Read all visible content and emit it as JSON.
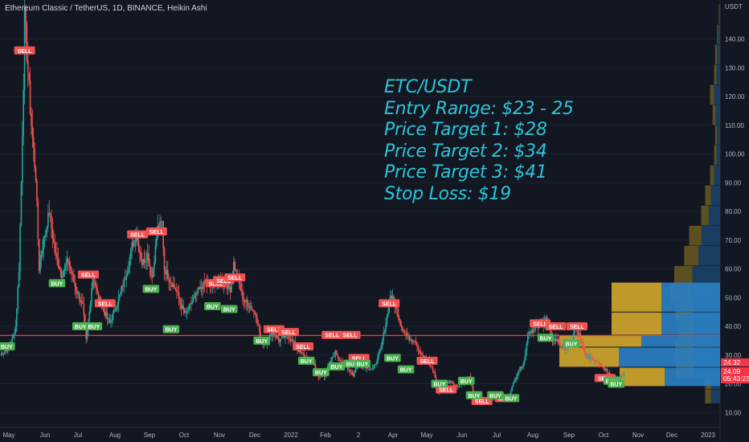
{
  "header": {
    "symbol": "Ethereum Classic / TetherUS, 1D, BINANCE, Heikin Ashi"
  },
  "annotation": {
    "lines": [
      "ETC/USDT",
      "Entry Range: $23 - 25",
      "Price Target 1: $28",
      "Price Target 2: $34",
      "Price Target 3: $41",
      "Stop Loss: $19"
    ]
  },
  "price_axis": {
    "currency": "USDT",
    "ticks": [
      "140.00",
      "130.00",
      "120.00",
      "110.00",
      "100.00",
      "90.00",
      "80.00",
      "70.00",
      "60.00",
      "50.00",
      "40.00",
      "30.00",
      "20.00",
      "10.00"
    ],
    "tags": {
      "upper": "24.32",
      "current": "24.09",
      "countdown": "05:43:23"
    }
  },
  "time_axis": {
    "labels": [
      "May",
      "Jun",
      "Jul",
      "Aug",
      "Sep",
      "Oct",
      "Nov",
      "Dec",
      "2022",
      "Feb",
      "2",
      "Apr",
      "May",
      "Jun",
      "Jul",
      "Aug",
      "Sep",
      "Oct",
      "Nov",
      "Dec",
      "2023"
    ]
  },
  "colors": {
    "background": "#131722",
    "up": "#26a69a",
    "down": "#ef5350",
    "horizontal_line": "#f23645",
    "annotation": "#2cc4d8",
    "vp_up": "#d4a72c",
    "vp_down": "#2a7fc2",
    "signal_buy": "#4caf50",
    "signal_sell": "#f05252"
  },
  "signals": {
    "sell_label": "SELL",
    "buy_label": "BUY",
    "sell_points": [
      [
        "2021-05-06",
        136
      ],
      [
        "2021-08-15",
        72
      ],
      [
        "2021-09-01",
        73
      ],
      [
        "2021-07-02",
        58
      ],
      [
        "2021-07-17",
        48
      ],
      [
        "2021-10-24",
        55
      ],
      [
        "2021-10-31",
        56
      ],
      [
        "2021-11-10",
        57
      ],
      [
        "2021-12-15",
        39
      ],
      [
        "2021-12-28",
        38
      ],
      [
        "2022-01-10",
        33
      ],
      [
        "2022-02-05",
        37
      ],
      [
        "2022-02-21",
        37
      ],
      [
        "2022-03-01",
        29
      ],
      [
        "2022-03-28",
        48
      ],
      [
        "2022-05-01",
        28
      ],
      [
        "2022-05-18",
        18
      ],
      [
        "2022-06-19",
        14
      ],
      [
        "2022-07-10",
        15
      ],
      [
        "2022-08-10",
        41
      ],
      [
        "2022-08-24",
        40
      ],
      [
        "2022-09-12",
        40
      ],
      [
        "2022-10-07",
        22
      ]
    ],
    "buy_points": [
      [
        "2021-04-20",
        33
      ],
      [
        "2021-06-04",
        55
      ],
      [
        "2021-06-25",
        40
      ],
      [
        "2021-07-07",
        40
      ],
      [
        "2021-08-27",
        53
      ],
      [
        "2021-09-14",
        39
      ],
      [
        "2021-10-21",
        47
      ],
      [
        "2021-11-05",
        46
      ],
      [
        "2021-12-04",
        35
      ],
      [
        "2022-01-13",
        28
      ],
      [
        "2022-01-26",
        24
      ],
      [
        "2022-02-09",
        26
      ],
      [
        "2022-02-23",
        27
      ],
      [
        "2022-03-04",
        27
      ],
      [
        "2022-03-31",
        29
      ],
      [
        "2022-04-12",
        25
      ],
      [
        "2022-05-12",
        20
      ],
      [
        "2022-06-05",
        21
      ],
      [
        "2022-06-12",
        16
      ],
      [
        "2022-07-01",
        16
      ],
      [
        "2022-07-15",
        15
      ],
      [
        "2022-08-15",
        36
      ],
      [
        "2022-09-07",
        34
      ],
      [
        "2022-10-13",
        21
      ],
      [
        "2022-10-17",
        20
      ]
    ]
  },
  "chart_data": {
    "type": "candlestick",
    "title": "Ethereum Classic / TetherUS, 1D, BINANCE, Heikin Ashi",
    "x_range": [
      "2021-04-14",
      "2023-01-10"
    ],
    "y_range": [
      4,
      153
    ],
    "horizontal_line": 36.8,
    "close_series": [
      [
        "2021-04-14",
        30
      ],
      [
        "2021-04-20",
        32
      ],
      [
        "2021-04-24",
        34
      ],
      [
        "2021-04-28",
        40
      ],
      [
        "2021-05-01",
        60
      ],
      [
        "2021-05-03",
        90
      ],
      [
        "2021-05-05",
        125
      ],
      [
        "2021-05-06",
        148
      ],
      [
        "2021-05-08",
        135
      ],
      [
        "2021-05-12",
        110
      ],
      [
        "2021-05-16",
        92
      ],
      [
        "2021-05-19",
        60
      ],
      [
        "2021-05-22",
        68
      ],
      [
        "2021-05-28",
        80
      ],
      [
        "2021-06-02",
        66
      ],
      [
        "2021-06-08",
        58
      ],
      [
        "2021-06-14",
        63
      ],
      [
        "2021-06-20",
        54
      ],
      [
        "2021-06-27",
        47
      ],
      [
        "2021-06-30",
        35
      ],
      [
        "2021-07-03",
        45
      ],
      [
        "2021-07-06",
        58
      ],
      [
        "2021-07-10",
        51
      ],
      [
        "2021-07-14",
        47
      ],
      [
        "2021-07-21",
        41
      ],
      [
        "2021-07-25",
        45
      ],
      [
        "2021-08-01",
        53
      ],
      [
        "2021-08-06",
        60
      ],
      [
        "2021-08-10",
        68
      ],
      [
        "2021-08-14",
        72
      ],
      [
        "2021-08-19",
        62
      ],
      [
        "2021-08-24",
        65
      ],
      [
        "2021-08-28",
        57
      ],
      [
        "2021-09-02",
        74
      ],
      [
        "2021-09-06",
        76
      ],
      [
        "2021-09-08",
        60
      ],
      [
        "2021-09-12",
        57
      ],
      [
        "2021-09-18",
        53
      ],
      [
        "2021-09-23",
        47
      ],
      [
        "2021-09-27",
        44
      ],
      [
        "2021-10-02",
        48
      ],
      [
        "2021-10-08",
        52
      ],
      [
        "2021-10-14",
        55
      ],
      [
        "2021-10-20",
        54
      ],
      [
        "2021-10-25",
        56
      ],
      [
        "2021-11-01",
        55
      ],
      [
        "2021-11-06",
        53
      ],
      [
        "2021-11-09",
        62
      ],
      [
        "2021-11-12",
        57
      ],
      [
        "2021-11-18",
        49
      ],
      [
        "2021-11-24",
        47
      ],
      [
        "2021-11-29",
        44
      ],
      [
        "2021-12-04",
        34
      ],
      [
        "2021-12-09",
        35
      ],
      [
        "2021-12-14",
        38
      ],
      [
        "2021-12-20",
        35
      ],
      [
        "2021-12-27",
        37
      ],
      [
        "2022-01-02",
        34
      ],
      [
        "2022-01-07",
        31
      ],
      [
        "2022-01-13",
        29
      ],
      [
        "2022-01-20",
        27
      ],
      [
        "2022-01-24",
        22
      ],
      [
        "2022-01-29",
        23
      ],
      [
        "2022-02-04",
        28
      ],
      [
        "2022-02-08",
        31
      ],
      [
        "2022-02-13",
        28
      ],
      [
        "2022-02-20",
        25
      ],
      [
        "2022-02-24",
        23
      ],
      [
        "2022-03-01",
        28
      ],
      [
        "2022-03-07",
        26
      ],
      [
        "2022-03-14",
        25
      ],
      [
        "2022-03-21",
        33
      ],
      [
        "2022-03-26",
        43
      ],
      [
        "2022-03-29",
        51
      ],
      [
        "2022-04-03",
        47
      ],
      [
        "2022-04-08",
        40
      ],
      [
        "2022-04-14",
        36
      ],
      [
        "2022-04-20",
        35
      ],
      [
        "2022-04-26",
        30
      ],
      [
        "2022-05-02",
        28
      ],
      [
        "2022-05-07",
        24
      ],
      [
        "2022-05-11",
        17
      ],
      [
        "2022-05-16",
        20
      ],
      [
        "2022-05-22",
        21
      ],
      [
        "2022-05-28",
        19
      ],
      [
        "2022-06-03",
        21
      ],
      [
        "2022-06-08",
        22
      ],
      [
        "2022-06-13",
        14
      ],
      [
        "2022-06-19",
        13
      ],
      [
        "2022-06-25",
        15
      ],
      [
        "2022-07-01",
        15
      ],
      [
        "2022-07-06",
        16
      ],
      [
        "2022-07-12",
        15
      ],
      [
        "2022-07-16",
        19
      ],
      [
        "2022-07-21",
        24
      ],
      [
        "2022-07-27",
        28
      ],
      [
        "2022-07-30",
        38
      ],
      [
        "2022-08-04",
        39
      ],
      [
        "2022-08-10",
        40
      ],
      [
        "2022-08-15",
        43
      ],
      [
        "2022-08-20",
        36
      ],
      [
        "2022-08-25",
        35
      ],
      [
        "2022-08-30",
        33
      ],
      [
        "2022-09-03",
        32
      ],
      [
        "2022-09-07",
        34
      ],
      [
        "2022-09-10",
        39
      ],
      [
        "2022-09-14",
        37
      ],
      [
        "2022-09-19",
        30
      ],
      [
        "2022-09-24",
        29
      ],
      [
        "2022-09-30",
        28
      ],
      [
        "2022-10-05",
        26
      ],
      [
        "2022-10-10",
        24
      ],
      [
        "2022-10-15",
        22
      ],
      [
        "2022-10-20",
        22
      ],
      [
        "2022-10-25",
        24.1
      ]
    ],
    "volume_profile_main": [
      {
        "low": 44.8,
        "high": 55.2,
        "up": 0.46,
        "down": 0.54
      },
      {
        "low": 36.8,
        "high": 44.8,
        "up": 0.46,
        "down": 0.54
      },
      {
        "low": 32.6,
        "high": 36.8,
        "up": 0.51,
        "down": 0.49
      },
      {
        "low": 25.6,
        "high": 32.6,
        "up": 0.37,
        "down": 0.63
      },
      {
        "low": 18.9,
        "high": 25.6,
        "up": 0.45,
        "down": 0.55
      }
    ],
    "volume_profile_right": [
      {
        "low": 145,
        "high": 152,
        "vol": 0.03
      },
      {
        "low": 138,
        "high": 145,
        "vol": 0.06
      },
      {
        "low": 131,
        "high": 138,
        "vol": 0.1
      },
      {
        "low": 124,
        "high": 131,
        "vol": 0.12
      },
      {
        "low": 117,
        "high": 124,
        "vol": 0.2
      },
      {
        "low": 110,
        "high": 117,
        "vol": 0.15
      },
      {
        "low": 103,
        "high": 110,
        "vol": 0.1
      },
      {
        "low": 96,
        "high": 103,
        "vol": 0.12
      },
      {
        "low": 89,
        "high": 96,
        "vol": 0.2
      },
      {
        "low": 82,
        "high": 89,
        "vol": 0.3
      },
      {
        "low": 75,
        "high": 82,
        "vol": 0.38
      },
      {
        "low": 68,
        "high": 75,
        "vol": 0.62
      },
      {
        "low": 61,
        "high": 68,
        "vol": 0.72
      },
      {
        "low": 55,
        "high": 61,
        "vol": 0.92
      },
      {
        "low": 48,
        "high": 55,
        "vol": 1
      },
      {
        "low": 42,
        "high": 48,
        "vol": 0.9
      },
      {
        "low": 35,
        "high": 42,
        "vol": 0.85
      },
      {
        "low": 28,
        "high": 35,
        "vol": 0.9
      },
      {
        "low": 22,
        "high": 28,
        "vol": 0.88
      },
      {
        "low": 18,
        "high": 22,
        "vol": 0.3
      },
      {
        "low": 13,
        "high": 18,
        "vol": 0.3
      }
    ]
  }
}
